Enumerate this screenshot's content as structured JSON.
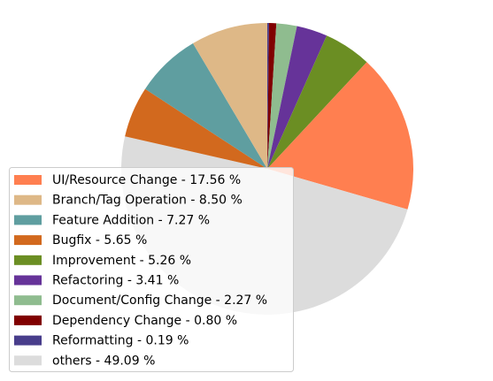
{
  "chart_data": {
    "type": "pie",
    "title": "",
    "legend_placement": "lower-left",
    "start_angle_deg": 90,
    "direction": "clockwise",
    "slices": [
      {
        "label": "Reformatting - 0.19 %",
        "value": 0.19,
        "color": "#483D8B"
      },
      {
        "label": "Dependency Change - 0.80 %",
        "value": 0.8,
        "color": "#800000"
      },
      {
        "label": "Document/Config Change - 2.27 %",
        "value": 2.27,
        "color": "#8FBC8F"
      },
      {
        "label": "Refactoring - 3.41 %",
        "value": 3.41,
        "color": "#663399"
      },
      {
        "label": "Improvement - 5.26 %",
        "value": 5.26,
        "color": "#6B8E23"
      },
      {
        "label": "UI/Resource Change - 17.56 %",
        "value": 17.56,
        "color": "#FF7F50"
      },
      {
        "label": "others - 49.09 %",
        "value": 49.09,
        "color": "#DCDCDC"
      },
      {
        "label": "Bugfix - 5.65 %",
        "value": 5.65,
        "color": "#D2691E"
      },
      {
        "label": "Feature Addition - 7.27 %",
        "value": 7.27,
        "color": "#5F9EA0"
      },
      {
        "label": "Branch/Tag Operation - 8.50 %",
        "value": 8.5,
        "color": "#DEB887"
      }
    ],
    "legend_order": [
      "UI/Resource Change - 17.56 %",
      "Branch/Tag Operation - 8.50 %",
      "Feature Addition - 7.27 %",
      "Bugfix - 5.65 %",
      "Improvement - 5.26 %",
      "Refactoring - 3.41 %",
      "Document/Config Change - 2.27 %",
      "Dependency Change - 0.80 %",
      "Reformatting - 0.19 %",
      "others - 49.09 %"
    ]
  }
}
